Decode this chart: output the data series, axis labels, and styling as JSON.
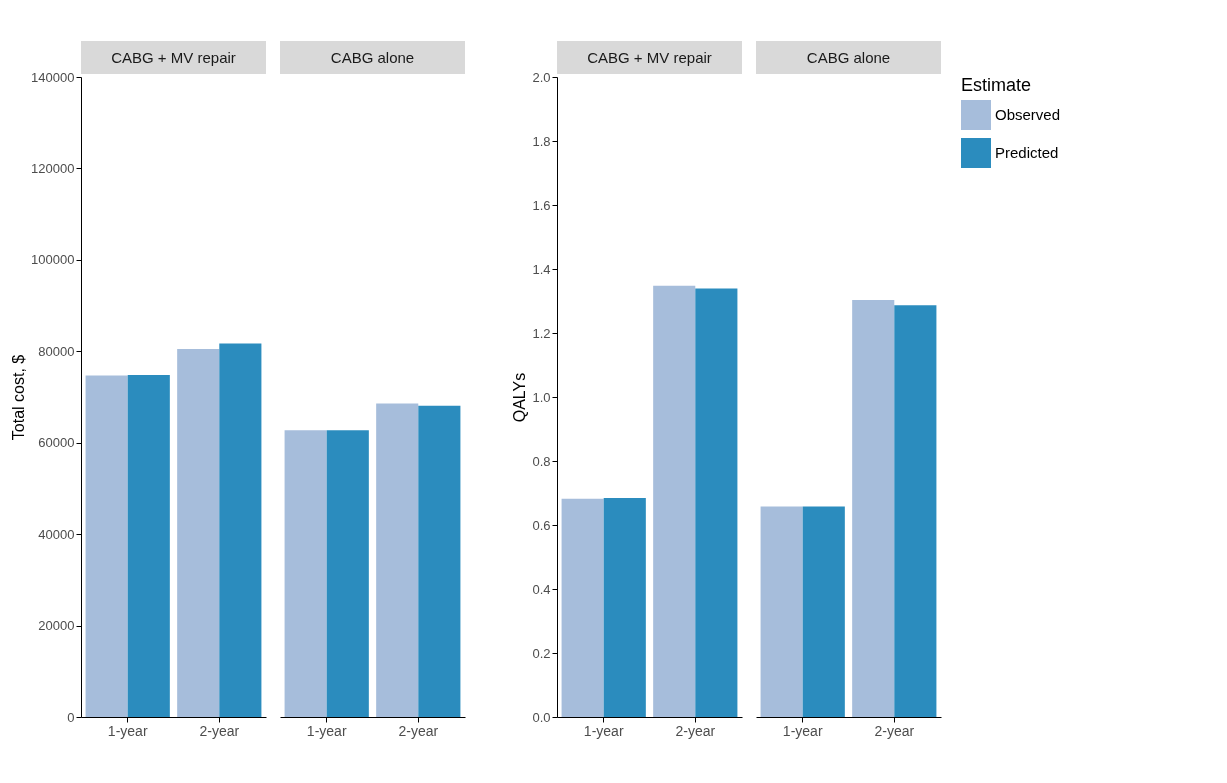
{
  "chart_data": [
    {
      "type": "bar",
      "title": "CABG + MV repair",
      "ylabel": "Total cost, $",
      "categories": [
        "1-year",
        "2-year"
      ],
      "ylim": [
        0,
        140000
      ],
      "yticks": [
        0,
        20000,
        40000,
        60000,
        80000,
        100000,
        120000,
        140000
      ],
      "legend": false,
      "series": [
        {
          "color": "#a6bddb",
          "values": [
            74700,
            80500
          ]
        },
        {
          "color": "#2b8cbe",
          "values": [
            74800,
            81700
          ]
        }
      ]
    },
    {
      "type": "bar",
      "title": "CABG alone",
      "categories": [
        "1-year",
        "2-year"
      ],
      "ylim": [
        0,
        140000
      ],
      "tick_labels": "x",
      "legend": false,
      "series": [
        {
          "color": "#a6bddb",
          "values": [
            62700,
            68600
          ]
        },
        {
          "color": "#2b8cbe",
          "values": [
            62700,
            68100
          ]
        }
      ]
    },
    {
      "type": "bar",
      "title": "CABG + MV repair",
      "ylabel": "QALYs",
      "categories": [
        "1-year",
        "2-year"
      ],
      "ylim": [
        0,
        2.0
      ],
      "yticks": [
        {
          "value": 0,
          "label": "0.0"
        },
        0.2,
        0.4,
        0.6,
        0.8,
        {
          "value": 1,
          "label": "1.0"
        },
        1.2,
        1.4,
        1.6,
        1.8,
        {
          "value": 2,
          "label": "2.0"
        }
      ],
      "legend": false,
      "series": [
        {
          "color": "#a6bddb",
          "values": [
            0.682,
            1.348
          ]
        },
        {
          "color": "#2b8cbe",
          "values": [
            0.684,
            1.339
          ]
        }
      ]
    },
    {
      "type": "bar",
      "title": "CABG alone",
      "categories": [
        "1-year",
        "2-year"
      ],
      "ylim": [
        0,
        2.0
      ],
      "tick_labels": "x",
      "legend": "right",
      "legend_title": "Estimate",
      "series": [
        {
          "name": "Observed",
          "color": "#a6bddb",
          "values": [
            0.658,
            1.303
          ]
        },
        {
          "name": "Predicted",
          "color": "#2b8cbe",
          "values": [
            0.658,
            1.287
          ]
        }
      ]
    }
  ]
}
